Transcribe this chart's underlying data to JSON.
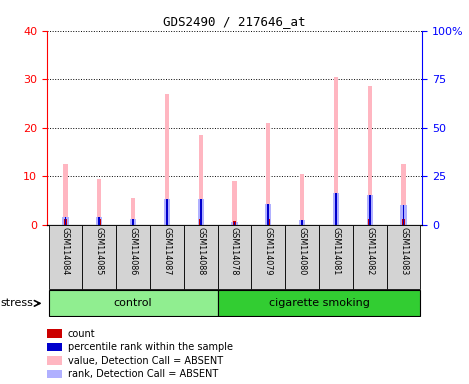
{
  "title": "GDS2490 / 217646_at",
  "samples": [
    "GSM114084",
    "GSM114085",
    "GSM114086",
    "GSM114087",
    "GSM114088",
    "GSM114078",
    "GSM114079",
    "GSM114080",
    "GSM114081",
    "GSM114082",
    "GSM114083"
  ],
  "count_values": [
    1.2,
    1.2,
    1.2,
    1.2,
    1.2,
    0.8,
    1.2,
    1.0,
    1.2,
    1.2,
    1.2
  ],
  "percentile_values": [
    1.5,
    1.5,
    1.2,
    5.2,
    5.2,
    0.5,
    4.2,
    1.0,
    6.5,
    6.2,
    4.0
  ],
  "absent_value": [
    12.5,
    9.5,
    5.5,
    27.0,
    18.5,
    9.0,
    21.0,
    10.5,
    30.5,
    28.5,
    12.5
  ],
  "absent_rank": [
    1.5,
    1.5,
    1.2,
    5.2,
    5.2,
    0.5,
    4.2,
    1.0,
    6.5,
    6.2,
    4.0
  ],
  "groups": [
    {
      "label": "control",
      "indices": [
        0,
        1,
        2,
        3,
        4
      ],
      "color": "#90ee90"
    },
    {
      "label": "cigarette smoking",
      "indices": [
        5,
        6,
        7,
        8,
        9,
        10
      ],
      "color": "#32cd32"
    }
  ],
  "ylim_left": [
    0,
    40
  ],
  "ylim_right": [
    0,
    100
  ],
  "yticks_left": [
    0,
    10,
    20,
    30,
    40
  ],
  "yticks_right": [
    0,
    25,
    50,
    75,
    100
  ],
  "ytick_labels_right": [
    "0",
    "25",
    "50",
    "75",
    "100%"
  ],
  "color_count": "#cc0000",
  "color_percentile": "#0000cc",
  "color_absent_value": "#ffb6c1",
  "color_absent_rank": "#b0b0ff",
  "stress_label": "stress",
  "legend_items": [
    {
      "label": "count",
      "color": "#cc0000"
    },
    {
      "label": "percentile rank within the sample",
      "color": "#0000cc"
    },
    {
      "label": "value, Detection Call = ABSENT",
      "color": "#ffb6c1"
    },
    {
      "label": "rank, Detection Call = ABSENT",
      "color": "#b0b0ff"
    }
  ]
}
